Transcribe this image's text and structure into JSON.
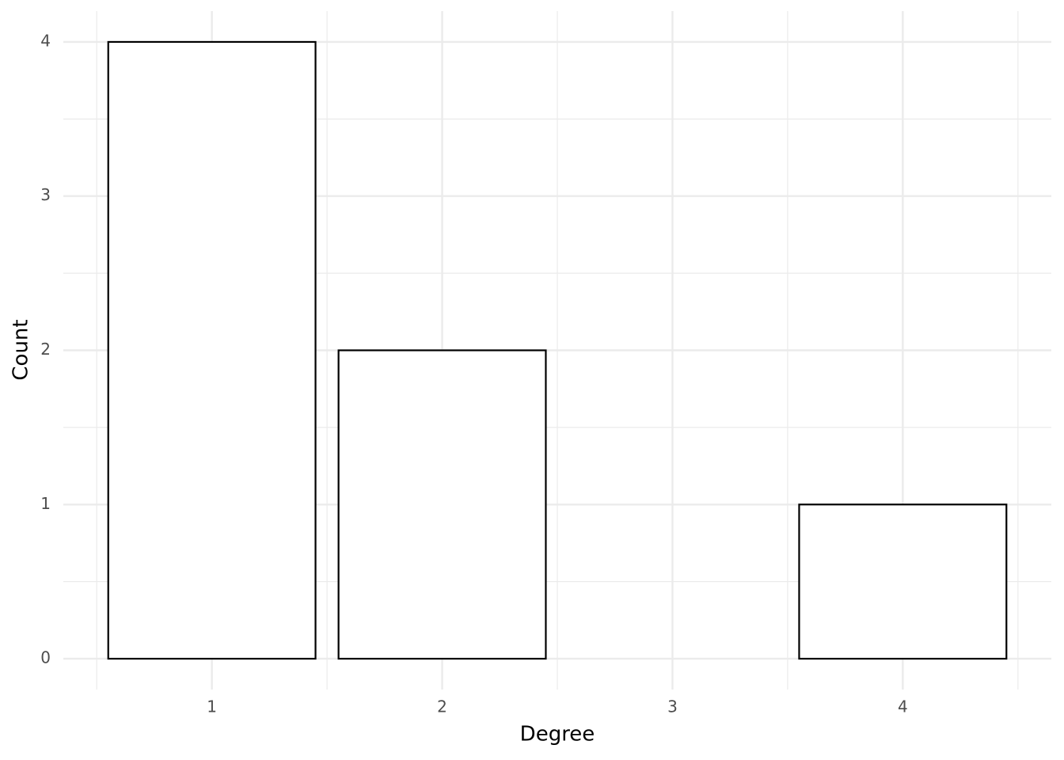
{
  "chart_data": {
    "type": "bar",
    "x_label": "Degree",
    "y_label": "Count",
    "x": [
      1,
      2,
      4
    ],
    "values": [
      4,
      2,
      1
    ],
    "color": "#ffffff",
    "edge_color": "#000000",
    "xlim": [
      0.355,
      4.645
    ],
    "xticks": [
      1,
      2,
      3,
      4
    ],
    "x_minor_ticks": [
      0.5,
      1.5,
      2.5,
      3.5,
      4.5
    ],
    "ylim": [
      -0.2,
      4.2
    ],
    "yticks": [
      0,
      1,
      2,
      3,
      4
    ],
    "y_minor_ticks": [
      0.5,
      1.5,
      2.5,
      3.5
    ],
    "grid": true
  }
}
